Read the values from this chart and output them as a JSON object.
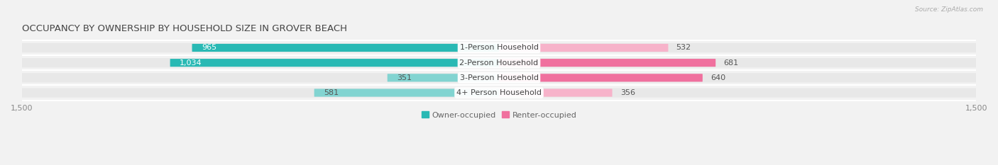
{
  "title": "OCCUPANCY BY OWNERSHIP BY HOUSEHOLD SIZE IN GROVER BEACH",
  "source": "Source: ZipAtlas.com",
  "categories": [
    "1-Person Household",
    "2-Person Household",
    "3-Person Household",
    "4+ Person Household"
  ],
  "owner_values": [
    965,
    1034,
    351,
    581
  ],
  "renter_values": [
    532,
    681,
    640,
    356
  ],
  "owner_color_dark": "#29b9b4",
  "owner_color_light": "#82d4d1",
  "renter_color_dark": "#f0709e",
  "renter_color_light": "#f7b3ca",
  "bar_height": 0.62,
  "xlim": 1500,
  "background_color": "#f2f2f2",
  "row_bg_color": "#e8e8e8",
  "title_fontsize": 9.5,
  "value_fontsize": 8,
  "cat_fontsize": 8,
  "tick_fontsize": 8,
  "legend_fontsize": 8
}
